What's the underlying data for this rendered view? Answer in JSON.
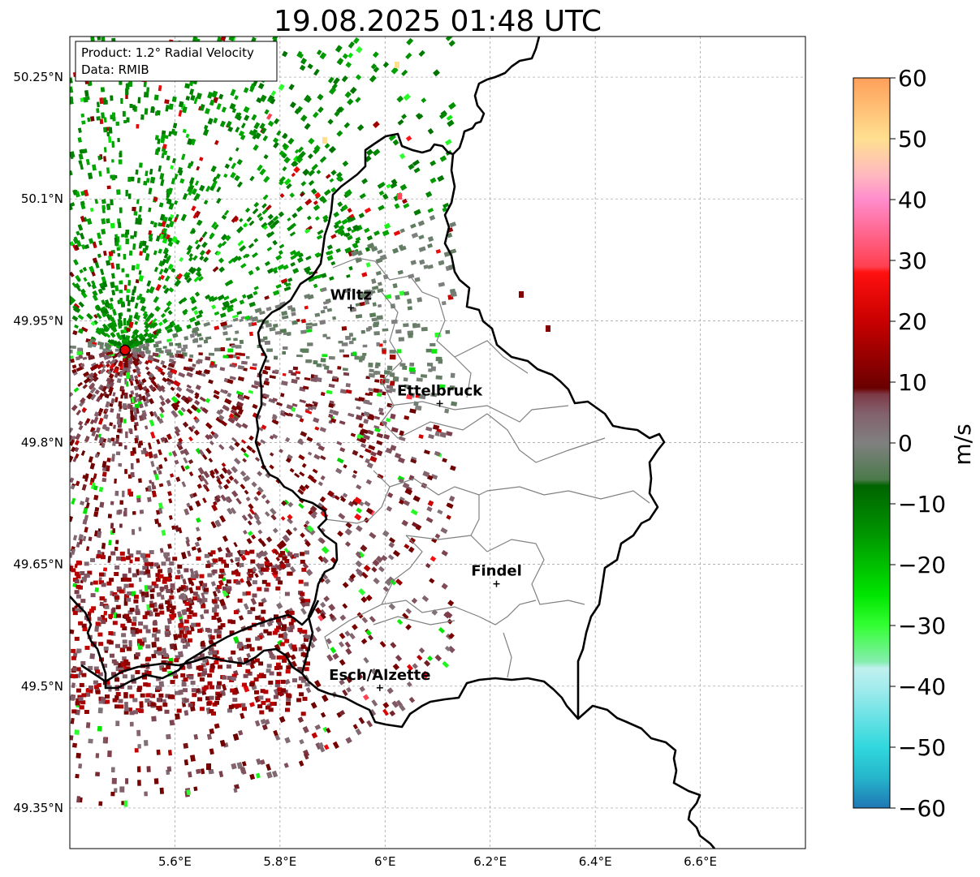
{
  "title": "19.08.2025 01:48 UTC",
  "info_box": {
    "product": "Product: 1.2° Radial Velocity",
    "data_source": "Data: RMIB"
  },
  "map": {
    "lon_range": [
      5.4,
      6.8
    ],
    "lat_range": [
      49.3,
      50.3
    ],
    "x_ticks": [
      {
        "value": 5.6,
        "label": "5.6°E"
      },
      {
        "value": 5.8,
        "label": "5.8°E"
      },
      {
        "value": 6.0,
        "label": "6°E"
      },
      {
        "value": 6.2,
        "label": "6.2°E"
      },
      {
        "value": 6.4,
        "label": "6.4°E"
      },
      {
        "value": 6.6,
        "label": "6.6°E"
      }
    ],
    "y_ticks": [
      {
        "value": 50.25,
        "label": "50.25°N"
      },
      {
        "value": 50.1,
        "label": "50.1°N"
      },
      {
        "value": 49.95,
        "label": "49.95°N"
      },
      {
        "value": 49.8,
        "label": "49.8°N"
      },
      {
        "value": 49.65,
        "label": "49.65°N"
      },
      {
        "value": 49.5,
        "label": "49.5°N"
      },
      {
        "value": 49.35,
        "label": "49.35°N"
      }
    ],
    "grid": true,
    "radar_site": {
      "lon": 5.505,
      "lat": 49.914,
      "color": "#e00000"
    },
    "cities": [
      {
        "name": "Wiltz",
        "lon": 5.935,
        "lat": 49.966
      },
      {
        "name": "Ettelbruck",
        "lon": 6.104,
        "lat": 49.848
      },
      {
        "name": "Findel",
        "lon": 6.212,
        "lat": 49.626
      },
      {
        "name": "Esch/Alzette",
        "lon": 5.99,
        "lat": 49.498
      }
    ]
  },
  "colorbar": {
    "label": "m/s",
    "range": [
      -60,
      60
    ],
    "ticks": [
      {
        "value": 60,
        "label": "60"
      },
      {
        "value": 50,
        "label": "50"
      },
      {
        "value": 40,
        "label": "40"
      },
      {
        "value": 30,
        "label": "30"
      },
      {
        "value": 20,
        "label": "20"
      },
      {
        "value": 10,
        "label": "10"
      },
      {
        "value": 0,
        "label": "0"
      },
      {
        "value": -10,
        "label": "−10"
      },
      {
        "value": -20,
        "label": "−20"
      },
      {
        "value": -30,
        "label": "−30"
      },
      {
        "value": -40,
        "label": "−40"
      },
      {
        "value": -50,
        "label": "−50"
      },
      {
        "value": -60,
        "label": "−60"
      }
    ],
    "stops": [
      {
        "v": -60,
        "color": "#1f77b4"
      },
      {
        "v": -55,
        "color": "#25b5cc"
      },
      {
        "v": -50,
        "color": "#30d8dd"
      },
      {
        "v": -40,
        "color": "#a5eced"
      },
      {
        "v": -37,
        "color": "#c0f0ee"
      },
      {
        "v": -36,
        "color": "#86eeb0"
      },
      {
        "v": -30,
        "color": "#33ff33"
      },
      {
        "v": -25,
        "color": "#00e600"
      },
      {
        "v": -15,
        "color": "#009600"
      },
      {
        "v": -7,
        "color": "#006400"
      },
      {
        "v": -6,
        "color": "#4b7a4b"
      },
      {
        "v": 0,
        "color": "#808080"
      },
      {
        "v": 5,
        "color": "#82606c"
      },
      {
        "v": 8,
        "color": "#7c3a46"
      },
      {
        "v": 9,
        "color": "#6a0000"
      },
      {
        "v": 20,
        "color": "#c80000"
      },
      {
        "v": 28,
        "color": "#ff1010"
      },
      {
        "v": 29,
        "color": "#ff4050"
      },
      {
        "v": 40,
        "color": "#ff8ccc"
      },
      {
        "v": 44,
        "color": "#ffb8c0"
      },
      {
        "v": 50,
        "color": "#ffe090"
      },
      {
        "v": 60,
        "color": "#ff9f5a"
      }
    ]
  }
}
